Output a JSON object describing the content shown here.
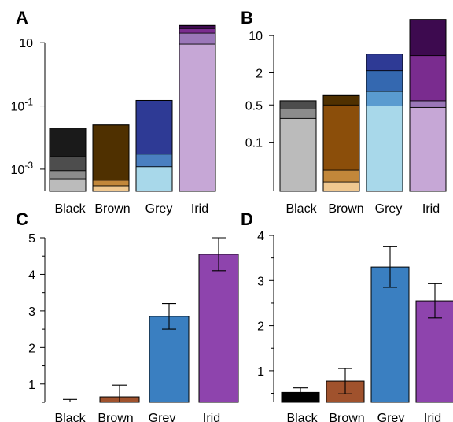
{
  "chart_data": [
    {
      "panel": "A",
      "type": "bar",
      "stacked": true,
      "yscale": "log",
      "categories": [
        "Black",
        "Brown",
        "Grey",
        "Irid"
      ],
      "ytick_labels": [
        "10",
        "10-1",
        "10-3"
      ],
      "yticks": [
        10,
        0.1,
        0.001
      ],
      "stacks": [
        {
          "category": "Black",
          "segments": [
            {
              "top": 0.0005,
              "color": "#bbbbbb"
            },
            {
              "top": 0.0009,
              "color": "#8c8c8c"
            },
            {
              "top": 0.0025,
              "color": "#4d4d4d"
            },
            {
              "top": 0.02,
              "color": "#1a1a1a"
            }
          ]
        },
        {
          "category": "Brown",
          "segments": [
            {
              "top": 0.0003,
              "color": "#f0c890"
            },
            {
              "top": 0.00045,
              "color": "#c2873a"
            },
            {
              "top": 0.025,
              "color": "#4f3000"
            }
          ]
        },
        {
          "category": "Grey",
          "segments": [
            {
              "top": 0.0012,
              "color": "#a8d8ea"
            },
            {
              "top": 0.003,
              "color": "#4a7fc0"
            },
            {
              "top": 0.15,
              "color": "#2e3a95"
            }
          ]
        },
        {
          "category": "Irid",
          "segments": [
            {
              "top": 9.0,
              "color": "#c6a7d6"
            },
            {
              "top": 20.0,
              "color": "#9b77b9"
            },
            {
              "top": 28.0,
              "color": "#7a2c8f"
            },
            {
              "top": 35.0,
              "color": "#3d0a4f"
            }
          ]
        }
      ]
    },
    {
      "panel": "B",
      "type": "bar",
      "stacked": true,
      "yscale": "log",
      "categories": [
        "Black",
        "Brown",
        "Grey",
        "Irid"
      ],
      "ytick_labels": [
        "10",
        "2",
        "0.5",
        "0.1"
      ],
      "yticks": [
        10,
        2,
        0.5,
        0.1
      ],
      "stacks": [
        {
          "category": "Black",
          "segments": [
            {
              "top": 0.28,
              "color": "#bbbbbb"
            },
            {
              "top": 0.42,
              "color": "#8c8c8c"
            },
            {
              "top": 0.6,
              "color": "#4d4d4d"
            }
          ]
        },
        {
          "category": "Brown",
          "segments": [
            {
              "top": 0.018,
              "color": "#f0c890"
            },
            {
              "top": 0.03,
              "color": "#c2873a"
            },
            {
              "top": 0.5,
              "color": "#8b4e0a"
            },
            {
              "top": 0.75,
              "color": "#4f3000"
            }
          ]
        },
        {
          "category": "Grey",
          "segments": [
            {
              "top": 0.48,
              "color": "#a8d8ea"
            },
            {
              "top": 0.9,
              "color": "#5a9bd0"
            },
            {
              "top": 2.2,
              "color": "#3468b0"
            },
            {
              "top": 4.5,
              "color": "#2e3a95"
            }
          ]
        },
        {
          "category": "Irid",
          "segments": [
            {
              "top": 0.45,
              "color": "#c6a7d6"
            },
            {
              "top": 0.6,
              "color": "#9b77b9"
            },
            {
              "top": 4.2,
              "color": "#7a2c8f"
            },
            {
              "top": 20.0,
              "color": "#3d0a4f"
            }
          ]
        }
      ]
    },
    {
      "panel": "C",
      "type": "bar",
      "categories": [
        "Black",
        "Brown",
        "Grey",
        "Irid"
      ],
      "values": [
        0.4,
        0.65,
        2.85,
        4.55
      ],
      "errors_low": [
        0.32,
        0.35,
        0.35,
        0.45
      ],
      "errors_high": [
        0.18,
        0.32,
        0.35,
        0.45
      ],
      "colors": [
        "#000000",
        "#a0522d",
        "#3a7fc1",
        "#8e44ad"
      ],
      "ylim": [
        0.5,
        5
      ],
      "yticks": [
        1,
        2,
        3,
        4,
        5
      ]
    },
    {
      "panel": "D",
      "type": "bar",
      "categories": [
        "Black",
        "Brown",
        "Grey",
        "Irid"
      ],
      "values": [
        0.52,
        0.77,
        3.3,
        2.55
      ],
      "errors_low": [
        0.14,
        0.28,
        0.45,
        0.38
      ],
      "errors_high": [
        0.1,
        0.28,
        0.45,
        0.38
      ],
      "colors": [
        "#000000",
        "#a0522d",
        "#3a7fc1",
        "#8e44ad"
      ],
      "ylim": [
        0.3,
        4
      ],
      "yticks": [
        1,
        2,
        3,
        4
      ]
    }
  ]
}
